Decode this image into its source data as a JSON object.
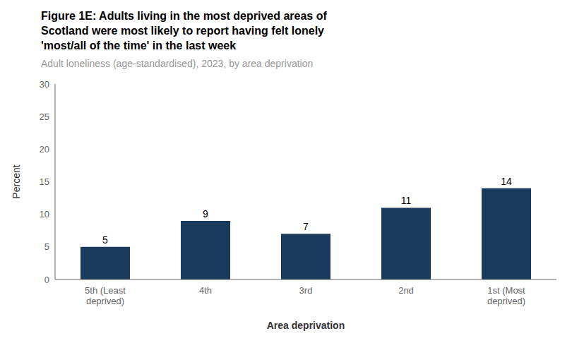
{
  "chart_data": {
    "type": "bar",
    "title": "Figure 1E: Adults living in the most deprived areas of\nScotland were most likely to report having felt lonely\n'most/all of the time' in the last week",
    "subtitle": "Adult loneliness (age-standardised), 2023, by area deprivation",
    "categories": [
      "5th (Least\ndeprived)",
      "4th",
      "3rd",
      "2nd",
      "1st (Most\ndeprived)"
    ],
    "values": [
      5,
      9,
      7,
      11,
      14
    ],
    "color": "#1a3a5c",
    "ylabel": "Percent",
    "xlabel": "Area deprivation",
    "ylim": [
      0,
      30
    ],
    "yticks": [
      0,
      5,
      10,
      15,
      20,
      25,
      30
    ],
    "data_labels": true,
    "grid": false
  }
}
